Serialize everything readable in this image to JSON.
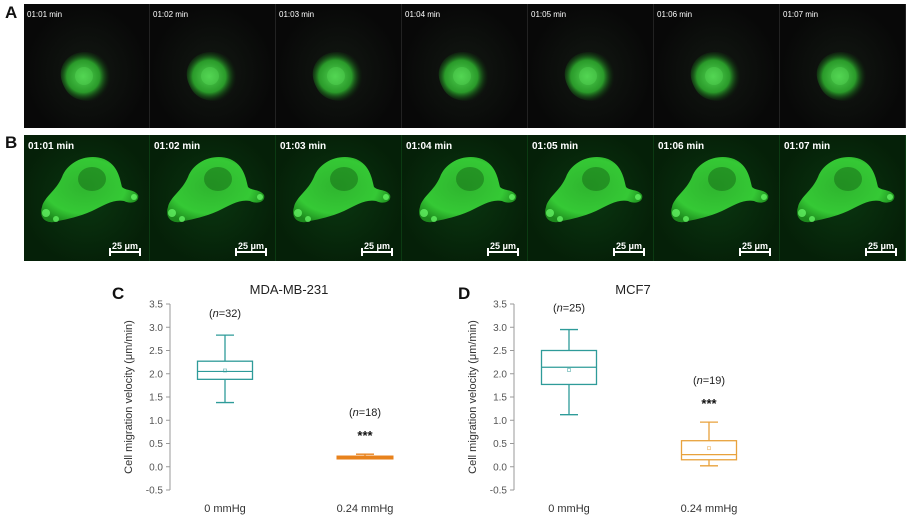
{
  "panels": {
    "a": {
      "letter": "A",
      "times": [
        "01:01 min",
        "01:02 min",
        "01:03 min",
        "01:04 min",
        "01:05 min",
        "01:06 min",
        "01:07 min"
      ]
    },
    "b": {
      "letter": "B",
      "times": [
        "01:01 min",
        "01:02 min",
        "01:03 min",
        "01:04 min",
        "01:05 min",
        "01:06 min",
        "01:07 min"
      ],
      "scale_label": "25 μm"
    },
    "c": {
      "letter": "C"
    },
    "d": {
      "letter": "D"
    }
  },
  "chart_data": [
    {
      "type": "box",
      "title": "MDA-MB-231",
      "ylabel": "Cell migration velocity (μm/min)",
      "ylim": [
        -0.5,
        3.5
      ],
      "yticks": [
        "-0.5",
        "0.0",
        "0.5",
        "1.0",
        "1.5",
        "2.0",
        "2.5",
        "3.0",
        "3.5"
      ],
      "categories": [
        "0 mmHg",
        "0.24 mmHg"
      ],
      "boxes": [
        {
          "category": "0 mmHg",
          "min": 1.38,
          "q1": 1.88,
          "median": 2.05,
          "mean": 2.07,
          "q3": 2.27,
          "max": 2.83,
          "n": "32",
          "color": "#2e9b99",
          "significance": ""
        },
        {
          "category": "0.24 mmHg",
          "min": 0.17,
          "q1": 0.19,
          "median": 0.2,
          "mean": 0.2,
          "q3": 0.22,
          "max": 0.27,
          "n": "18",
          "color": "#e8821c",
          "significance": "***"
        }
      ]
    },
    {
      "type": "box",
      "title": "MCF7",
      "ylabel": "Cell migration velocity (μm/min)",
      "ylim": [
        -0.5,
        3.5
      ],
      "yticks": [
        "-0.5",
        "0.0",
        "0.5",
        "1.0",
        "1.5",
        "2.0",
        "2.5",
        "3.0",
        "3.5"
      ],
      "categories": [
        "0 mmHg",
        "0.24 mmHg"
      ],
      "boxes": [
        {
          "category": "0 mmHg",
          "min": 1.12,
          "q1": 1.77,
          "median": 2.14,
          "mean": 2.08,
          "q3": 2.5,
          "max": 2.95,
          "n": "25",
          "color": "#2e9b99",
          "significance": ""
        },
        {
          "category": "0.24 mmHg",
          "min": 0.02,
          "q1": 0.15,
          "median": 0.26,
          "mean": 0.4,
          "q3": 0.56,
          "max": 0.96,
          "n": "19",
          "color": "#e8a23c",
          "significance": "***"
        }
      ]
    }
  ]
}
